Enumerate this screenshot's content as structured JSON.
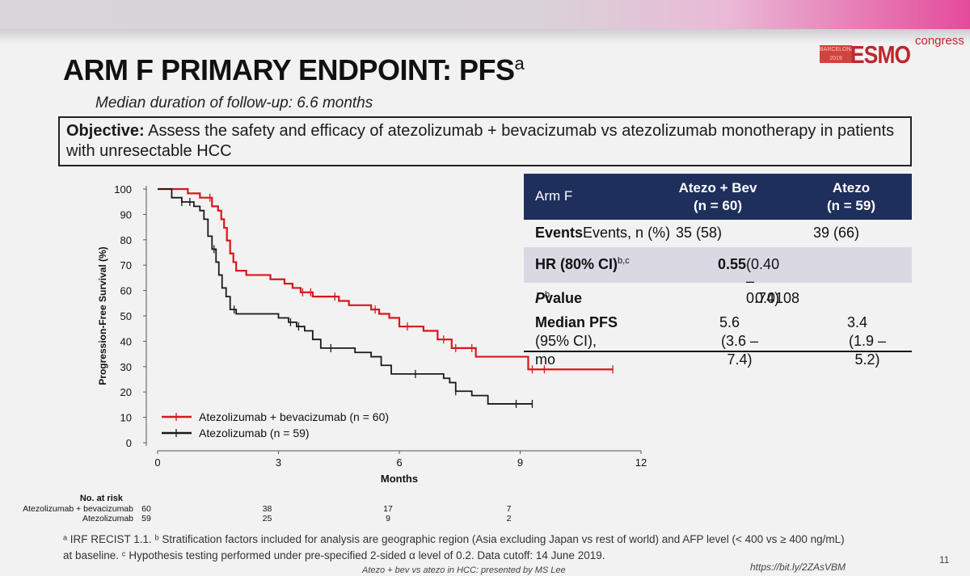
{
  "slide": {
    "title": "ARM F PRIMARY ENDPOINT: PFS",
    "title_sup": "a",
    "subtitle": "Median duration of follow-up: 6.6 months",
    "objective_label": "Objective:",
    "objective_text": " Assess the safety and efficacy of atezolizumab + bevacizumab vs atezolizumab monotherapy in patients with unresectable HCC",
    "logo_congress": "congress",
    "logo_esmo": "ESMO",
    "logo_city": "BARCELONA 2019"
  },
  "results_table": {
    "header": {
      "arm": "Arm F",
      "col1_line1": "Atezo + Bev",
      "col1_line2": "(n = 60)",
      "col2_line1": "Atezo",
      "col2_line2": "(n = 59)"
    },
    "events": {
      "label": "Events, n (%)",
      "col1": "35 (58)",
      "col2": "39 (66)"
    },
    "hr": {
      "label": "HR (80% CI)",
      "label_sup": "b,c",
      "value_bold": "0.55",
      "value_rest": " (0.40 – 0.74)"
    },
    "pvalue": {
      "label_italic": "P",
      "label_rest": " value",
      "label_sup": "b",
      "value": "0.0108"
    },
    "median": {
      "label_line1": "Median PFS",
      "label_line2": "(95% CI), mo",
      "col1_line1": "5.6",
      "col1_line2": "(3.6 – 7.4)",
      "col2_line1": "3.4",
      "col2_line2": "(1.9 – 5.2)"
    }
  },
  "chart_data": {
    "type": "line",
    "title": "",
    "xlabel": "Months",
    "ylabel": "Progression-Free Survival (%)",
    "xlim": [
      0,
      12
    ],
    "ylim": [
      0,
      100
    ],
    "x_ticks": [
      0,
      3,
      6,
      9,
      12
    ],
    "y_ticks": [
      0,
      10,
      20,
      30,
      40,
      50,
      60,
      70,
      80,
      90,
      100
    ],
    "legend_position": "bottom-left",
    "series": [
      {
        "name": "Atezolizumab + bevacizumab (n = 60)",
        "color": "#d7171c",
        "x": [
          0,
          0.55,
          0.75,
          0.95,
          1.05,
          1.2,
          1.35,
          1.5,
          1.58,
          1.65,
          1.72,
          1.8,
          1.88,
          1.95,
          2.05,
          2.2,
          2.35,
          2.5,
          2.65,
          2.8,
          3.0,
          3.15,
          3.35,
          3.55,
          3.7,
          3.85,
          4.0,
          4.5,
          4.75,
          5.0,
          5.3,
          5.5,
          5.75,
          6.0,
          6.3,
          6.6,
          6.95,
          7.3,
          7.6,
          7.9,
          8.3,
          8.65,
          9.2,
          9.5,
          11.3
        ],
        "y": [
          100,
          100,
          98.3,
          98.3,
          96.6,
          96.6,
          93.2,
          91.5,
          88.1,
          84.7,
          79.7,
          74.6,
          71.2,
          67.8,
          67.8,
          66.1,
          66.1,
          66.1,
          66.1,
          64.4,
          64.4,
          62.7,
          61.0,
          59.3,
          59.3,
          57.6,
          57.6,
          55.9,
          54.2,
          54.2,
          52.5,
          50.8,
          49.2,
          45.8,
          45.8,
          44.1,
          40.7,
          37.3,
          37.3,
          33.9,
          33.9,
          33.9,
          28.9,
          28.9,
          28.9
        ],
        "censor_x": [
          1.3,
          3.6,
          3.8,
          4.4,
          5.4,
          6.2,
          7.1,
          7.4,
          7.8,
          9.3,
          9.6,
          11.3
        ]
      },
      {
        "name": "Atezolizumab (n = 59)",
        "color": "#1a1a1a",
        "x": [
          0,
          0.35,
          0.6,
          0.75,
          0.9,
          1.05,
          1.15,
          1.25,
          1.35,
          1.45,
          1.52,
          1.6,
          1.7,
          1.8,
          1.95,
          2.2,
          2.5,
          2.8,
          3.0,
          3.25,
          3.45,
          3.65,
          3.85,
          4.05,
          4.2,
          4.5,
          4.9,
          5.3,
          5.55,
          5.8,
          6.05,
          6.3,
          6.6,
          7.1,
          7.25,
          7.4,
          7.55,
          7.8,
          8.2,
          8.6,
          9.3
        ],
        "y": [
          100,
          96.6,
          94.9,
          94.9,
          93.2,
          91.5,
          88.1,
          81.4,
          76.3,
          71.2,
          66.1,
          61.0,
          57.6,
          52.5,
          50.8,
          50.8,
          50.8,
          50.8,
          49.2,
          47.5,
          45.8,
          44.1,
          40.7,
          37.3,
          37.3,
          37.3,
          35.6,
          33.9,
          30.5,
          27.1,
          27.1,
          27.1,
          27.1,
          25.4,
          23.7,
          20.3,
          20.3,
          18.6,
          15.3,
          15.3,
          15.3
        ],
        "censor_x": [
          0.6,
          0.8,
          1.4,
          1.9,
          3.3,
          3.5,
          4.3,
          6.4,
          7.4,
          8.9,
          9.3
        ]
      }
    ],
    "risk_table": {
      "title": "No. at risk",
      "timepoints": [
        0,
        3,
        6,
        9
      ],
      "rows": [
        {
          "label": "Atezolizumab + bevacizumab",
          "values": [
            "60",
            "38",
            "17",
            "7"
          ]
        },
        {
          "label": "Atezolizumab",
          "values": [
            "59",
            "25",
            "9",
            "2"
          ]
        }
      ]
    }
  },
  "footnote": {
    "line1": "ᵃ IRF RECIST 1.1. ᵇ Stratification factors included for analysis are geographic region (Asia excluding Japan vs rest of world) and AFP level (< 400 vs ≥ 400 ng/mL)",
    "line2": "at baseline. ᶜ Hypothesis testing performed under pre-specified 2-sided α level of 0.2. Data cutoff: 14 June 2019."
  },
  "footer_text": "Atezo + bev vs atezo in HCC: presented by MS Lee",
  "url": "https://bit.ly/2ZAsVBM",
  "page_number": "11"
}
